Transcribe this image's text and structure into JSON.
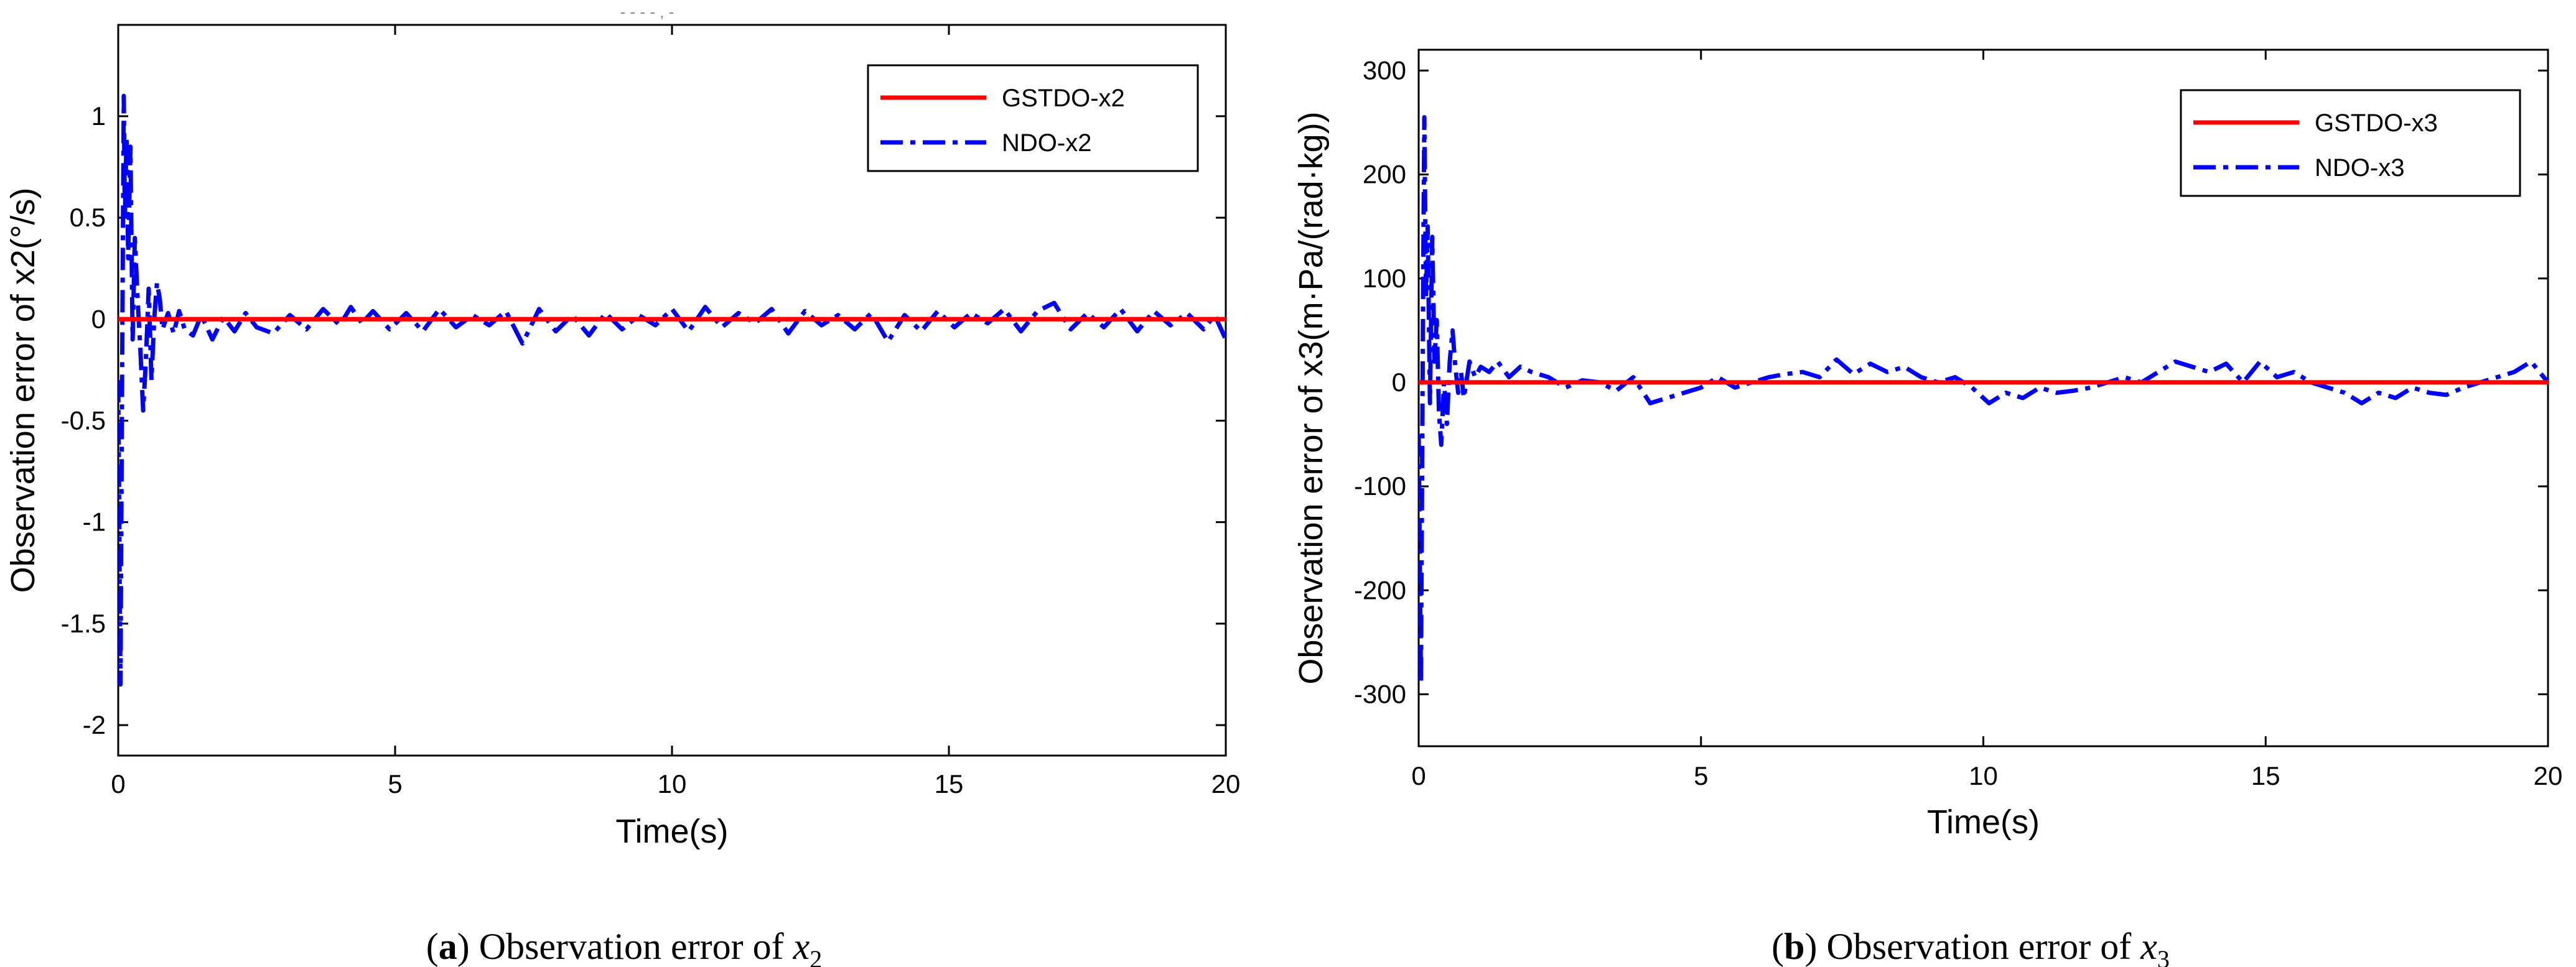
{
  "chart_data": [
    {
      "type": "line",
      "id": "a",
      "caption": {
        "letter": "a",
        "text": "Observation error of",
        "var_symbol": "x",
        "var_sub": "2"
      },
      "xlabel": "Time(s)",
      "ylabel": "Observation error of x2(°/s)",
      "xlim": [
        0,
        20
      ],
      "ylim": [
        -2.15,
        1.45
      ],
      "xticks": [
        0,
        5,
        10,
        15,
        20
      ],
      "yticks": [
        1,
        0.5,
        0,
        -0.5,
        -1,
        -1.5,
        -2
      ],
      "ytick_labels": [
        "1",
        "0.5",
        "0",
        "-0.5",
        "-1",
        "-1.5",
        "-2"
      ],
      "grid": false,
      "legend_position": "top-right",
      "series": [
        {
          "name": "GSTDO-x2",
          "color": "#ff0000",
          "style": "solid",
          "x": [
            0,
            20
          ],
          "y": [
            0,
            0
          ]
        },
        {
          "name": "NDO-x2",
          "color": "#0000ff",
          "style": "dashdot",
          "x": [
            0,
            0.04,
            0.08,
            0.1,
            0.12,
            0.15,
            0.18,
            0.22,
            0.26,
            0.3,
            0.35,
            0.4,
            0.45,
            0.5,
            0.55,
            0.6,
            0.65,
            0.7,
            0.75,
            0.8,
            0.9,
            1.0,
            1.1,
            1.2,
            1.35,
            1.5,
            1.7,
            1.9,
            2.1,
            2.3,
            2.5,
            2.8,
            3.1,
            3.4,
            3.7,
            4.0,
            4.2,
            4.4,
            4.6,
            4.9,
            5.2,
            5.5,
            5.8,
            6.1,
            6.4,
            6.7,
            7.0,
            7.3,
            7.6,
            7.9,
            8.2,
            8.5,
            8.8,
            9.1,
            9.4,
            9.7,
            10.0,
            10.3,
            10.6,
            10.9,
            11.2,
            11.5,
            11.8,
            12.1,
            12.4,
            12.7,
            13.0,
            13.3,
            13.6,
            13.9,
            14.2,
            14.5,
            14.8,
            15.1,
            15.4,
            15.7,
            16.0,
            16.3,
            16.6,
            16.9,
            17.2,
            17.5,
            17.8,
            18.1,
            18.4,
            18.7,
            19.0,
            19.3,
            19.6,
            19.8,
            20.0
          ],
          "y": [
            -0.3,
            -1.8,
            0.2,
            1.1,
            0.5,
            0.9,
            0.3,
            0.85,
            -0.1,
            0.4,
            0.1,
            -0.15,
            -0.45,
            -0.2,
            0.15,
            -0.3,
            0.0,
            0.18,
            0.1,
            -0.05,
            0.03,
            -0.07,
            0.04,
            -0.05,
            -0.08,
            0.02,
            -0.1,
            0.01,
            -0.06,
            0.03,
            -0.04,
            -0.07,
            0.02,
            -0.05,
            0.05,
            -0.03,
            0.06,
            -0.02,
            0.04,
            -0.05,
            0.03,
            -0.06,
            0.05,
            -0.04,
            0.02,
            -0.03,
            0.04,
            -0.12,
            0.05,
            -0.06,
            0.02,
            -0.08,
            0.03,
            -0.05,
            0.02,
            -0.03,
            0.05,
            -0.06,
            0.06,
            -0.04,
            0.03,
            -0.02,
            0.05,
            -0.07,
            0.04,
            -0.03,
            0.02,
            -0.05,
            0.03,
            -0.11,
            0.02,
            -0.06,
            0.04,
            -0.04,
            0.03,
            -0.02,
            0.05,
            -0.06,
            0.04,
            0.08,
            -0.05,
            0.03,
            -0.04,
            0.05,
            -0.06,
            0.04,
            -0.03,
            0.03,
            -0.05,
            0.02,
            -0.1
          ]
        }
      ]
    },
    {
      "type": "line",
      "id": "b",
      "caption": {
        "letter": "b",
        "text": "Observation error of",
        "var_symbol": "x",
        "var_sub": "3"
      },
      "xlabel": "Time(s)",
      "ylabel": "Observation error of x3(m·Pa/(rad·kg))",
      "xlim": [
        0,
        20
      ],
      "ylim": [
        -350,
        320
      ],
      "xticks": [
        0,
        5,
        10,
        15,
        20
      ],
      "yticks": [
        300,
        200,
        100,
        0,
        -100,
        -200,
        -300
      ],
      "ytick_labels": [
        "300",
        "200",
        "100",
        "0",
        "-100",
        "-200",
        "-300"
      ],
      "grid": false,
      "legend_position": "top-right",
      "series": [
        {
          "name": "GSTDO-x3",
          "color": "#ff0000",
          "style": "solid",
          "x": [
            0,
            20
          ],
          "y": [
            0,
            0
          ]
        },
        {
          "name": "NDO-x3",
          "color": "#0000ff",
          "style": "dashdot",
          "x": [
            0,
            0.04,
            0.08,
            0.1,
            0.13,
            0.16,
            0.2,
            0.24,
            0.28,
            0.32,
            0.36,
            0.4,
            0.45,
            0.5,
            0.55,
            0.6,
            0.65,
            0.7,
            0.75,
            0.8,
            0.9,
            1.0,
            1.1,
            1.25,
            1.4,
            1.6,
            1.8,
            2.0,
            2.3,
            2.6,
            2.9,
            3.2,
            3.5,
            3.8,
            4.1,
            4.4,
            4.7,
            5.0,
            5.3,
            5.6,
            5.9,
            6.2,
            6.5,
            6.8,
            7.1,
            7.4,
            7.7,
            8.0,
            8.3,
            8.6,
            8.9,
            9.2,
            9.5,
            9.8,
            10.1,
            10.4,
            10.7,
            11.0,
            11.3,
            11.6,
            11.9,
            12.2,
            12.5,
            12.8,
            13.1,
            13.4,
            13.7,
            14.0,
            14.3,
            14.6,
            14.9,
            15.2,
            15.5,
            15.8,
            16.1,
            16.4,
            16.7,
            17.0,
            17.3,
            17.6,
            17.9,
            18.2,
            18.5,
            18.8,
            19.1,
            19.4,
            19.7,
            20.0
          ],
          "y": [
            -50,
            -290,
            100,
            255,
            80,
            150,
            -20,
            140,
            20,
            60,
            -30,
            -60,
            0,
            -40,
            20,
            50,
            15,
            -10,
            10,
            -15,
            20,
            5,
            15,
            10,
            20,
            5,
            15,
            10,
            5,
            -5,
            2,
            0,
            -8,
            5,
            -20,
            -15,
            -10,
            -5,
            5,
            -5,
            0,
            5,
            8,
            10,
            5,
            22,
            8,
            18,
            10,
            15,
            5,
            0,
            5,
            -5,
            -20,
            -10,
            -15,
            -5,
            -10,
            -8,
            -5,
            0,
            5,
            0,
            10,
            20,
            15,
            10,
            18,
            0,
            20,
            5,
            10,
            0,
            -5,
            -10,
            -20,
            -10,
            -15,
            -5,
            -10,
            -12,
            -5,
            0,
            5,
            10,
            20,
            0
          ]
        }
      ]
    }
  ],
  "page_marks": {
    "header_fragment": "- -   -   - ,   -"
  }
}
